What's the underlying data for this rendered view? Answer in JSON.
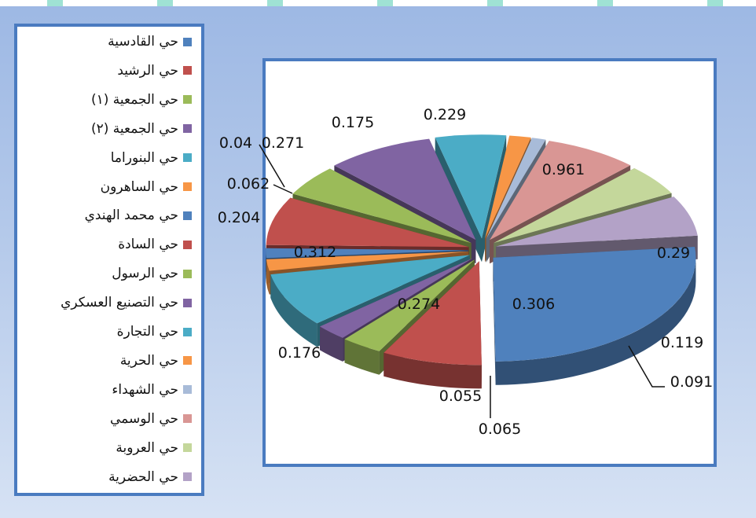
{
  "chart_data": {
    "type": "pie",
    "categories": [
      "حي القادسية",
      "حي الرشيد",
      "حي الجمعية (١)",
      "حي الجمعية (٢)",
      "حي البنوراما",
      "حي الساهرون",
      "حي محمد الهندي",
      "حي السادة",
      "حي الرسول",
      "حي التصنيع العسكري",
      "حي التجارة",
      "حي الحرية",
      "حي الشهداء",
      "حي الوسمي",
      "حي العروبة",
      "حي الحضرية"
    ],
    "values": [
      0.961,
      0.29,
      0.119,
      0.091,
      0.306,
      0.065,
      0.055,
      0.274,
      0.176,
      0.312,
      0.204,
      0.062,
      0.04,
      0.271,
      0.175,
      0.229
    ],
    "value_labels": [
      "0.961",
      "0.29",
      "0.119",
      "0.091",
      "0.306",
      "0.065",
      "0.055",
      "0.274",
      "0.176",
      "0.312",
      "0.204",
      "0.062",
      "0.04",
      "0.271",
      "0.175",
      "0.229"
    ],
    "colors": [
      "#4f81bd",
      "#c0504d",
      "#9bbb59",
      "#8064a2",
      "#4bacc6",
      "#f79646",
      "#4f81bd",
      "#c0504d",
      "#9bbb59",
      "#8064a2",
      "#4bacc6",
      "#f79646",
      "#a8bbd8",
      "#d99694",
      "#c4d79b",
      "#b3a2c7"
    ],
    "legend_position": "left",
    "exploded": true,
    "style": "3d"
  }
}
